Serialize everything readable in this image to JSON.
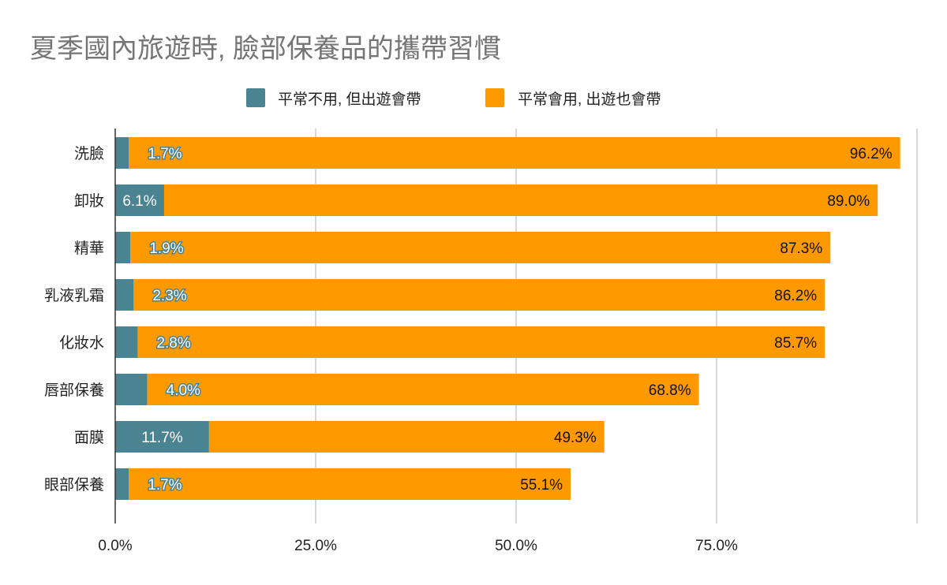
{
  "chart_data": {
    "type": "bar",
    "orientation": "horizontal",
    "stacked": true,
    "title": "夏季國內旅遊時, 臉部保養品的攜帶習慣",
    "categories": [
      "洗臉",
      "卸妝",
      "精華",
      "乳液乳霜",
      "化妝水",
      "唇部保養",
      "面膜",
      "眼部保養"
    ],
    "series": [
      {
        "name": "平常不用, 但出遊會帶",
        "color": "#4a8391",
        "values": [
          1.7,
          6.1,
          1.9,
          2.3,
          2.8,
          4.0,
          11.7,
          1.7
        ],
        "labels": [
          "1.7%",
          "6.1%",
          "1.9%",
          "2.3%",
          "2.8%",
          "4.0%",
          "11.7%",
          "1.7%"
        ]
      },
      {
        "name": "平常會用, 出遊也會帶",
        "color": "#ff9900",
        "values": [
          96.2,
          89.0,
          87.3,
          86.2,
          85.7,
          68.8,
          49.3,
          55.1
        ],
        "labels": [
          "96.2%",
          "89.0%",
          "87.3%",
          "86.2%",
          "85.7%",
          "68.8%",
          "49.3%",
          "55.1%"
        ]
      }
    ],
    "x_ticks": [
      "0.0%",
      "25.0%",
      "50.0%",
      "75.0%"
    ],
    "xlim": [
      0,
      100
    ],
    "grid": true,
    "legend_position": "top"
  }
}
